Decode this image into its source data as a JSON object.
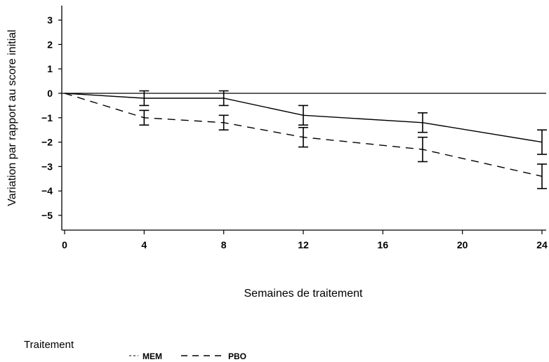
{
  "chart_data": {
    "type": "line",
    "xlabel": "Semaines de traitement",
    "ylabel": "Variation par rapport au score initial",
    "xlim": [
      0,
      24
    ],
    "ylim": [
      -5.5,
      3.5
    ],
    "x_ticks": [
      "0",
      "4",
      "8",
      "12",
      "16",
      "20",
      "24"
    ],
    "y_ticks": [
      "3",
      "2",
      "1",
      "0",
      "-1",
      "-2",
      "-3",
      "-4",
      "-5"
    ],
    "reference_line_y": 0,
    "x": [
      0,
      4,
      8,
      12,
      18,
      24
    ],
    "series": [
      {
        "name": "MEM",
        "style": "solid",
        "values": [
          0,
          -0.2,
          -0.2,
          -0.9,
          -1.2,
          -2.0
        ],
        "error_low": [
          null,
          -0.5,
          -0.5,
          -1.3,
          -1.6,
          -2.5
        ],
        "error_high": [
          null,
          0.1,
          0.1,
          -0.5,
          -0.8,
          -1.5
        ]
      },
      {
        "name": "PBO",
        "style": "dashed",
        "values": [
          0,
          -1.0,
          -1.2,
          -1.8,
          -2.3,
          -3.4
        ],
        "error_low": [
          null,
          -1.3,
          -1.5,
          -2.2,
          -2.8,
          -3.9
        ],
        "error_high": [
          null,
          -0.7,
          -0.9,
          -1.4,
          -1.8,
          -2.9
        ]
      }
    ],
    "legend": {
      "title": "Traitement",
      "position": "bottom-left"
    }
  }
}
